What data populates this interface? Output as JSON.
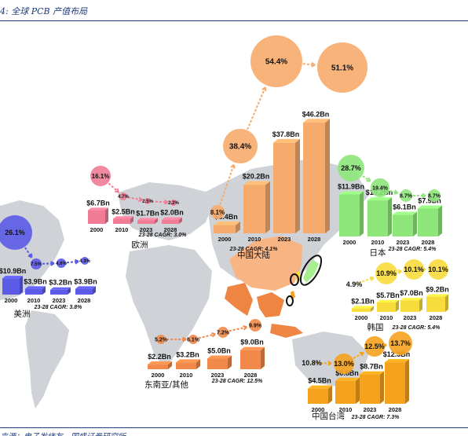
{
  "caption": "4: 全球 PCB 产值布局",
  "source": "来源：电子发烧友，国盛证券研究所",
  "chart_data": {
    "type": "bar",
    "title": "全球 PCB 产值布局",
    "categories": [
      "2000",
      "2010",
      "2023",
      "2028"
    ],
    "unit": "$Bn",
    "regions": [
      {
        "name": "中国大陆",
        "color": "#f6ab6c",
        "cagr": "23-28 CAGR: 4.1%",
        "values": [
          3.4,
          20.2,
          37.8,
          46.2
        ],
        "value_labels": [
          "$3.4Bn",
          "$20.2Bn",
          "$37.8Bn",
          "$46.2Bn"
        ],
        "shares": [
          "8.1%",
          "38.4%",
          "54.4%",
          "51.1%"
        ]
      },
      {
        "name": "日本",
        "color": "#8ee57a",
        "cagr": "23-28 CAGR: 5.4%",
        "values": [
          11.9,
          10.2,
          6.1,
          7.9
        ],
        "value_labels": [
          "$11.9Bn",
          "$10.2Bn",
          "$6.1Bn",
          "$7.9Bn"
        ],
        "shares": [
          "28.7%",
          "19.4%",
          "8.7%",
          "8.7%"
        ]
      },
      {
        "name": "欧洲",
        "color": "#f07c96",
        "cagr": "23-28 CAGR: 3.0%",
        "values": [
          6.7,
          2.5,
          1.7,
          2.0
        ],
        "value_labels": [
          "$6.7Bn",
          "$2.5Bn",
          "$1.7Bn",
          "$2.0Bn"
        ],
        "shares": [
          "16.1%",
          "4.7%",
          "2.5%",
          "2.2%"
        ]
      },
      {
        "name": "美洲",
        "color": "#5b5be8",
        "cagr": "23-28 CAGR: 3.8%",
        "values": [
          10.9,
          3.9,
          3.2,
          3.9
        ],
        "value_labels": [
          "$10.9Bn",
          "$3.9Bn",
          "$3.2Bn",
          "$3.9Bn"
        ],
        "shares": [
          "26.1%",
          "7.5%",
          "4.6%",
          "4.3%"
        ]
      },
      {
        "name": "韩国",
        "color": "#f8dc3c",
        "cagr": "23-28 CAGR: 5.4%",
        "values": [
          2.1,
          5.7,
          7.0,
          9.2
        ],
        "value_labels": [
          "$2.1Bn",
          "$5.7Bn",
          "$7.0Bn",
          "$9.2Bn"
        ],
        "shares": [
          "4.9%",
          "10.9%",
          "10.1%",
          "10.1%"
        ]
      },
      {
        "name": "东南亚/其他",
        "color": "#f0894a",
        "cagr": "23-28 CAGR: 12.5%",
        "values": [
          2.2,
          3.2,
          5.0,
          9.0
        ],
        "value_labels": [
          "$2.2Bn",
          "$3.2Bn",
          "$5.0Bn",
          "$9.0Bn"
        ],
        "shares": [
          "5.2%",
          "6.1%",
          "7.2%",
          "9.9%"
        ]
      },
      {
        "name": "中国台湾",
        "color": "#f5a21e",
        "cagr": "23-28 CAGR: 7.3%",
        "values": [
          4.5,
          6.8,
          8.7,
          12.3
        ],
        "value_labels": [
          "$4.5Bn",
          "$6.8Bn",
          "$8.7Bn",
          "$12.3Bn"
        ],
        "shares": [
          "10.8%",
          "13.0%",
          "12.5%",
          "13.7%"
        ]
      }
    ]
  }
}
